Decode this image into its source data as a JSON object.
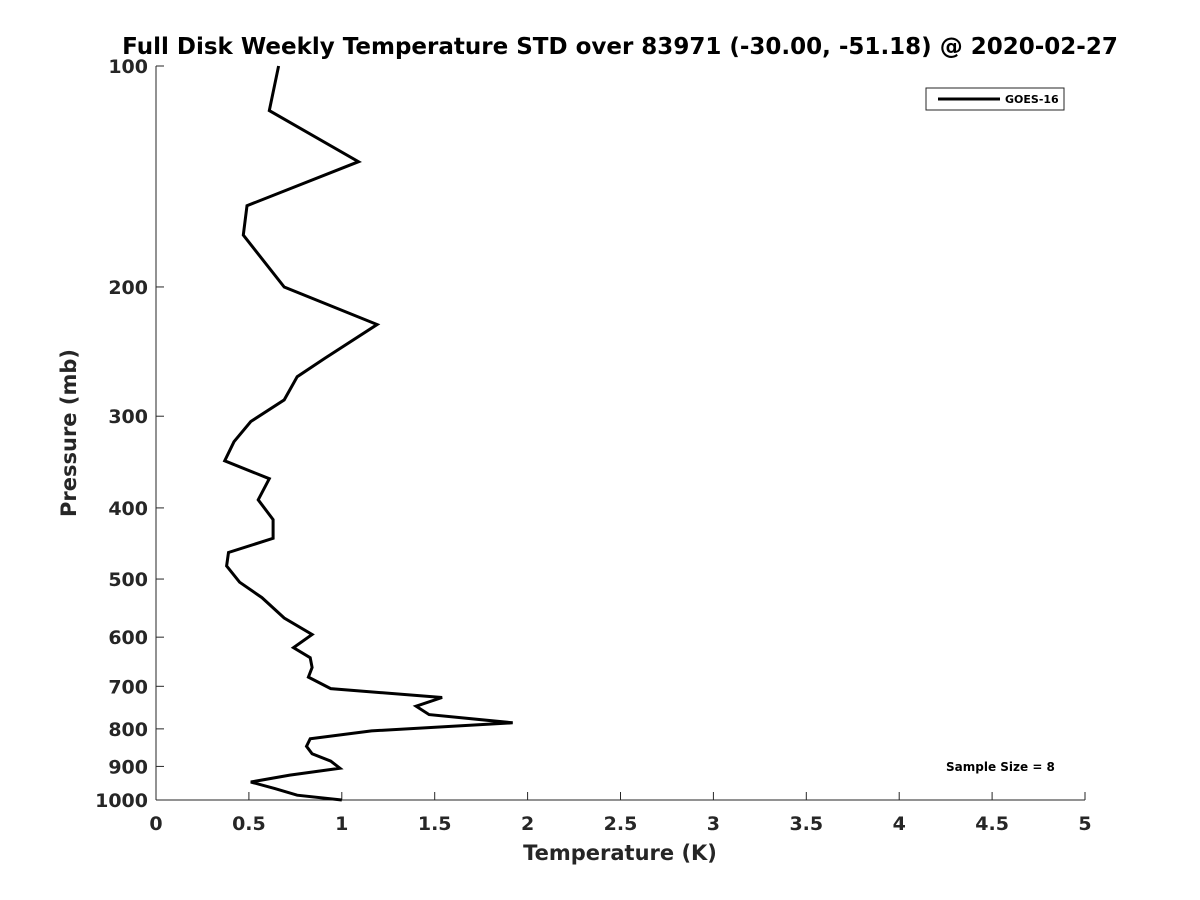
{
  "chart_data": {
    "type": "line",
    "title": "Full Disk Weekly Temperature STD over 83971 (-30.00, -51.18) @ 2020-02-27",
    "xlabel": "Temperature (K)",
    "ylabel": "Pressure (mb)",
    "xlim": [
      0,
      5
    ],
    "ylim": [
      100,
      1000
    ],
    "y_scale": "log",
    "y_reversed": true,
    "x_ticks": [
      0,
      0.5,
      1,
      1.5,
      2,
      2.5,
      3,
      3.5,
      4,
      4.5,
      5
    ],
    "x_tick_labels": [
      "0",
      "0.5",
      "1",
      "1.5",
      "2",
      "2.5",
      "3",
      "3.5",
      "4",
      "4.5",
      "5"
    ],
    "y_ticks": [
      100,
      200,
      300,
      400,
      500,
      600,
      700,
      800,
      900,
      1000
    ],
    "y_tick_labels": [
      "100",
      "200",
      "300",
      "400",
      "500",
      "600",
      "700",
      "800",
      "900",
      "1000"
    ],
    "grid": false,
    "legend_position": "top-right",
    "annotation": "Sample Size = 8",
    "series": [
      {
        "name": "GOES-16",
        "color": "#000000",
        "x": [
          0.66,
          0.61,
          1.09,
          0.49,
          0.47,
          0.69,
          1.19,
          0.91,
          0.76,
          0.69,
          0.51,
          0.42,
          0.37,
          0.61,
          0.55,
          0.63,
          0.63,
          0.39,
          0.38,
          0.45,
          0.57,
          0.69,
          0.84,
          0.74,
          0.83,
          0.84,
          0.82,
          0.94,
          1.54,
          1.4,
          1.47,
          1.92,
          1.16,
          0.83,
          0.81,
          0.84,
          0.94,
          0.99,
          0.72,
          0.51,
          0.64,
          0.76,
          1.0
        ],
        "y": [
          100,
          115,
          135,
          155,
          170,
          200,
          225,
          250,
          265,
          285,
          305,
          325,
          345,
          365,
          390,
          415,
          440,
          460,
          480,
          505,
          530,
          565,
          595,
          620,
          640,
          660,
          680,
          705,
          725,
          745,
          765,
          785,
          805,
          825,
          845,
          865,
          885,
          905,
          925,
          945,
          965,
          985,
          1000
        ]
      }
    ]
  }
}
